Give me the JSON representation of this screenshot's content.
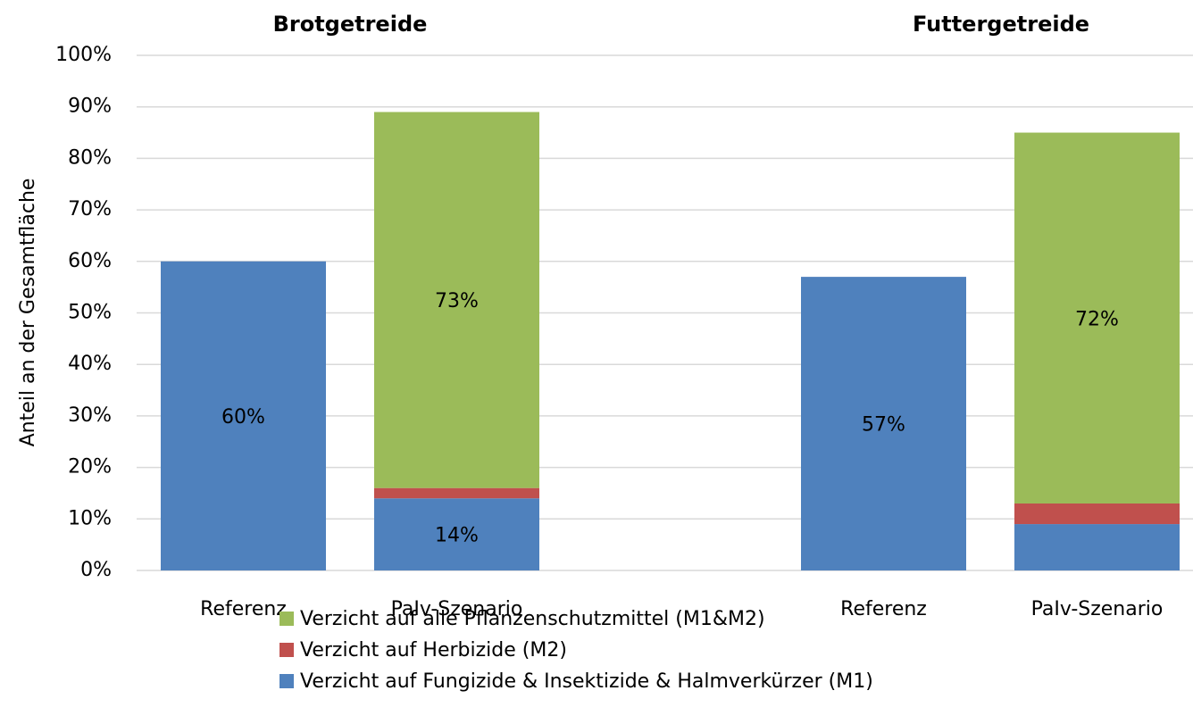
{
  "chart_data": {
    "type": "stacked_bar",
    "group_titles": [
      "Brotgetreide",
      "Futtergetreide"
    ],
    "y_label": "Anteil an der Gesamtfläche",
    "categories": [
      "Referenz",
      "PaIv-Szenario",
      null,
      "Referenz",
      "PaIv-Szenario"
    ],
    "series": [
      {
        "name": "Verzicht auf Fungizide & Insektizide & Halmverkürzer (M1)",
        "color": "#4f81bd",
        "values": [
          60,
          14,
          null,
          57,
          9
        ],
        "value_labels": [
          "60%",
          "14%",
          null,
          "57%",
          null
        ]
      },
      {
        "name": "Verzicht auf Herbizide (M2)",
        "color": "#c0504d",
        "values": [
          null,
          2,
          null,
          null,
          4
        ]
      },
      {
        "name": "Verzicht auf alle Pflanzenschutzmittel (M1&M2)",
        "color": "#9bbb59",
        "values": [
          null,
          73,
          null,
          null,
          72
        ],
        "value_labels": [
          null,
          "73%",
          null,
          null,
          "72%"
        ]
      }
    ],
    "ylim": [
      0,
      100
    ],
    "yticks": [
      {
        "value": 0,
        "label": "0%"
      },
      {
        "value": 10,
        "label": "10%"
      },
      {
        "value": 20,
        "label": "20%"
      },
      {
        "value": 30,
        "label": "30%"
      },
      {
        "value": 40,
        "label": "40%"
      },
      {
        "value": 50,
        "label": "50%"
      },
      {
        "value": 60,
        "label": "60%"
      },
      {
        "value": 70,
        "label": "70%"
      },
      {
        "value": 80,
        "label": "80%"
      },
      {
        "value": 90,
        "label": "90%"
      },
      {
        "value": 100,
        "label": "100%"
      }
    ],
    "grid": true
  }
}
